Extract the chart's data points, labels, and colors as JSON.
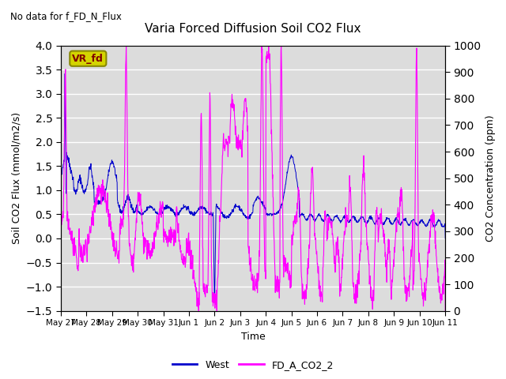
{
  "title": "Varia Forced Diffusion Soil CO2 Flux",
  "top_left_text": "No data for f_FD_N_Flux",
  "xlabel": "Time",
  "ylabel_left": "Soil CO2 Flux (mmol/m2/s)",
  "ylabel_right": "CO2 Concentration (ppm)",
  "ylim_left": [
    -1.5,
    4.0
  ],
  "ylim_right": [
    0,
    1000
  ],
  "legend_labels": [
    "West",
    "FD_A_CO2_2"
  ],
  "line_west_color": "#0000cc",
  "line_co2_color": "#ff00ff",
  "label_box_text": "VR_fd",
  "label_box_facecolor": "#d4d400",
  "label_box_edgecolor": "#888800",
  "label_box_text_color": "#800000",
  "bg_color": "#dcdcdc",
  "x_tick_labels": [
    "May 27",
    "May 28",
    "May 29",
    "May 30",
    "May 31",
    "Jun 1",
    "Jun 2",
    "Jun 3",
    "Jun 4",
    "Jun 5",
    "Jun 6",
    "Jun 7",
    "Jun 8",
    "Jun 9",
    "Jun 10",
    "Jun 11"
  ],
  "yticks_left": [
    -1.5,
    -1.0,
    -0.5,
    0.0,
    0.5,
    1.0,
    1.5,
    2.0,
    2.5,
    3.0,
    3.5,
    4.0
  ],
  "yticks_right": [
    0,
    100,
    200,
    300,
    400,
    500,
    600,
    700,
    800,
    900,
    1000
  ],
  "num_days": 15,
  "seed": 42
}
